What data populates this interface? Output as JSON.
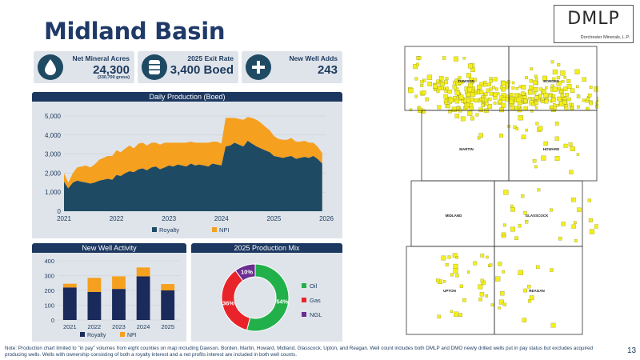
{
  "page_title": "Midland Basin",
  "logo": {
    "text": "DMLP",
    "subtitle": "Dorchester Minerals, L.P."
  },
  "kpis": [
    {
      "label": "Net Mineral Acres",
      "value": "24,300",
      "note": "(330,700 gross)",
      "icon": "water-drop-icon"
    },
    {
      "label": "2025 Exit Rate",
      "value": "3,400 Boed",
      "icon": "oil-barrel-icon"
    },
    {
      "label": "New Well Adds",
      "value": "243",
      "icon": "plus-icon"
    }
  ],
  "colors": {
    "navy": "#1f4a63",
    "orange": "#f5a01f",
    "green": "#22b04b",
    "red": "#e8242a",
    "purple": "#6b2d8f",
    "header": "#1c3760"
  },
  "chart_data": [
    {
      "type": "area",
      "title": "Daily Production (Boed)",
      "x_ticks": [
        "2021",
        "2022",
        "2023",
        "2024",
        "2025",
        "2026"
      ],
      "y_ticks": [
        "0",
        "1,000",
        "2,000",
        "3,000",
        "4,000",
        "5,000"
      ],
      "ylim": [
        0,
        5000
      ],
      "xlim": [
        2021,
        2026
      ],
      "x": [
        2021.0,
        2021.08,
        2021.17,
        2021.25,
        2021.33,
        2021.42,
        2021.5,
        2021.58,
        2021.67,
        2021.75,
        2021.83,
        2021.92,
        2022.0,
        2022.08,
        2022.17,
        2022.25,
        2022.33,
        2022.42,
        2022.5,
        2022.58,
        2022.67,
        2022.75,
        2022.83,
        2022.92,
        2023.0,
        2023.08,
        2023.17,
        2023.25,
        2023.33,
        2023.42,
        2023.5,
        2023.58,
        2023.67,
        2023.75,
        2023.83,
        2023.92,
        2024.0,
        2024.08,
        2024.17,
        2024.25,
        2024.33,
        2024.42,
        2024.5,
        2024.58,
        2024.67,
        2024.75,
        2024.83,
        2024.92,
        2025.0,
        2025.08,
        2025.17,
        2025.25,
        2025.33,
        2025.42,
        2025.5,
        2025.58,
        2025.67,
        2025.75,
        2025.83,
        2025.92
      ],
      "series": [
        {
          "name": "Royalty",
          "color": "#1f4a63",
          "values": [
            1550,
            1200,
            1500,
            1600,
            1550,
            1500,
            1450,
            1500,
            1600,
            1650,
            1700,
            1650,
            1900,
            1850,
            2000,
            2100,
            2050,
            2200,
            2250,
            2150,
            2300,
            2350,
            2200,
            2300,
            2400,
            2350,
            2450,
            2400,
            2350,
            2500,
            2400,
            2450,
            2400,
            2350,
            2500,
            2450,
            2400,
            3400,
            3450,
            3600,
            3500,
            3400,
            3700,
            3550,
            3400,
            3300,
            3200,
            3100,
            2900,
            2850,
            2800,
            2850,
            2900,
            2750,
            2800,
            2850,
            2800,
            2900,
            2750,
            2500
          ]
        },
        {
          "name": "NPI",
          "color": "#f5a01f",
          "values": [
            450,
            300,
            500,
            700,
            800,
            900,
            850,
            950,
            1100,
            1150,
            1200,
            1250,
            1300,
            1250,
            1300,
            1350,
            1250,
            1350,
            1350,
            1300,
            1300,
            1250,
            1300,
            1300,
            1200,
            1250,
            1150,
            1200,
            1250,
            1150,
            1200,
            1150,
            1200,
            1250,
            1150,
            1200,
            1150,
            1500,
            1450,
            1300,
            1350,
            1400,
            1250,
            1350,
            1400,
            1350,
            1250,
            1150,
            1050,
            950,
            950,
            900,
            950,
            900,
            850,
            850,
            800,
            700,
            650,
            550
          ]
        }
      ],
      "legend": "bottom"
    },
    {
      "type": "bar",
      "title": "New Well Activity",
      "categories": [
        "2021",
        "2022",
        "2023",
        "2024",
        "2025"
      ],
      "y_ticks": [
        "0",
        "100",
        "200",
        "300",
        "400"
      ],
      "ylim": [
        0,
        400
      ],
      "series": [
        {
          "name": "Royalty",
          "color": "#1a2a5a",
          "values": [
            220,
            190,
            210,
            295,
            200
          ]
        },
        {
          "name": "NPI",
          "color": "#f5a01f",
          "values": [
            25,
            95,
            85,
            60,
            43
          ]
        }
      ],
      "legend": "bottom"
    },
    {
      "type": "pie",
      "title": "2025 Production Mix",
      "labels": [
        "Oil",
        "Gas",
        "NGL"
      ],
      "values": [
        54,
        36,
        10
      ],
      "value_labels": [
        "54%",
        "36%",
        "10%"
      ],
      "colors": [
        "#22b04b",
        "#e8242a",
        "#6b2d8f"
      ],
      "legend": "right"
    }
  ],
  "map": {
    "counties": [
      "DAWSON",
      "BORDEN",
      "MARTIN",
      "HOWARD",
      "MIDLAND",
      "GLASSCOCK",
      "UPTON",
      "REAGAN"
    ]
  },
  "footnote": "Note: Production chart limited to \"in pay\" volumes from eight counties on map including Dawson, Borden, Martin, Howard, Midland, Glasscock, Upton, and Reagan. Well count includes both DMLP and DMO newly drilled wells put in pay status but excludes acquired producing wells. Wells with ownership consisting of both a royalty interest and a net profits interest are included in both well counts.",
  "page_number": "13"
}
